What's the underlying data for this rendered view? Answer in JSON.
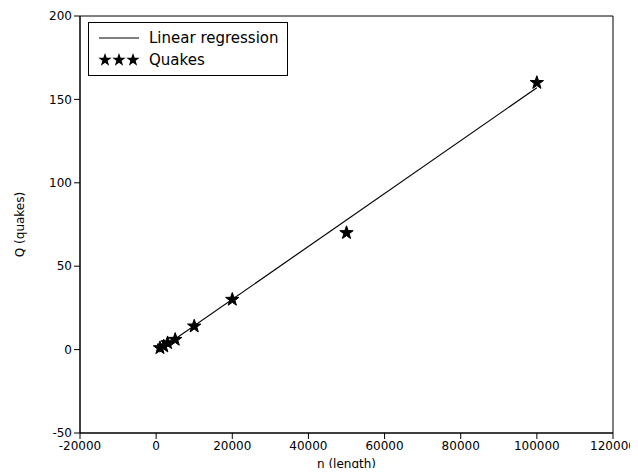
{
  "chart_data": {
    "type": "scatter",
    "x_label": "n (length)",
    "y_label": "Q (quakes)",
    "xlim": [
      -20000,
      120000
    ],
    "xticks": [
      -20000,
      0,
      20000,
      40000,
      60000,
      80000,
      100000,
      120000
    ],
    "ylim": [
      -50,
      200
    ],
    "yticks": [
      -50,
      0,
      50,
      100,
      150,
      200
    ],
    "legend": "upper left",
    "grid": false,
    "series": [
      {
        "name": "Linear regression",
        "type": "line",
        "line_style": "solid",
        "color": "#000000",
        "x": [
          1000,
          100000
        ],
        "values": [
          0,
          157
        ]
      },
      {
        "name": "Quakes",
        "type": "scatter",
        "marker": "star",
        "color": "#000000",
        "x": [
          1000,
          2000,
          3000,
          5000,
          10000,
          20000,
          50000,
          100000
        ],
        "values": [
          1,
          2,
          4,
          6,
          14,
          30,
          70,
          160
        ]
      }
    ]
  }
}
